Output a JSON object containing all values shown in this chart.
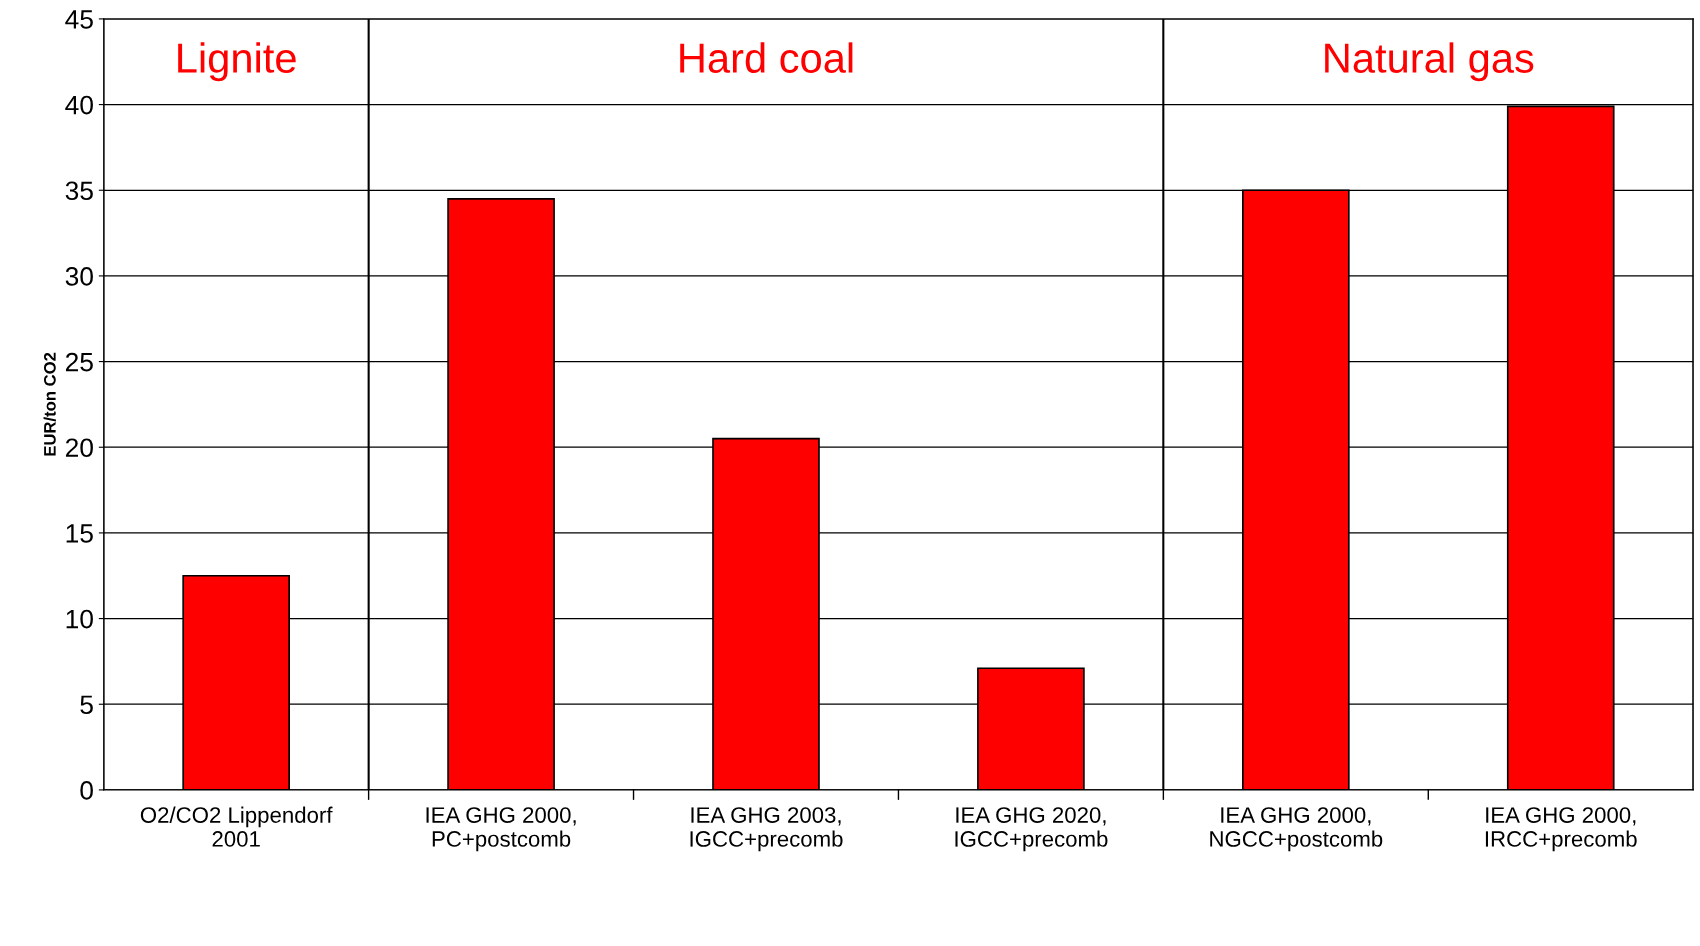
{
  "chart_data": {
    "type": "bar",
    "categories": [
      "O2/CO2 Lippendorf 2001",
      "IEA GHG 2000, PC+postcomb",
      "IEA GHG 2003, IGCC+precomb",
      "IEA GHG 2020, IGCC+precomb",
      "IEA GHG 2000, NGCC+postcomb",
      "IEA GHG 2000, IRCC+precomb"
    ],
    "values": [
      12.5,
      34.5,
      20.5,
      7.1,
      35.0,
      39.9
    ],
    "color": "#ff0000",
    "ylabel": "EUR/ton CO2",
    "ylim": [
      0,
      45
    ],
    "yticks": [
      0,
      5,
      10,
      15,
      20,
      25,
      30,
      35,
      40,
      45
    ],
    "grid": "y",
    "annotations": [
      "Lignite",
      "Hard coal",
      "Natural gas"
    ]
  }
}
